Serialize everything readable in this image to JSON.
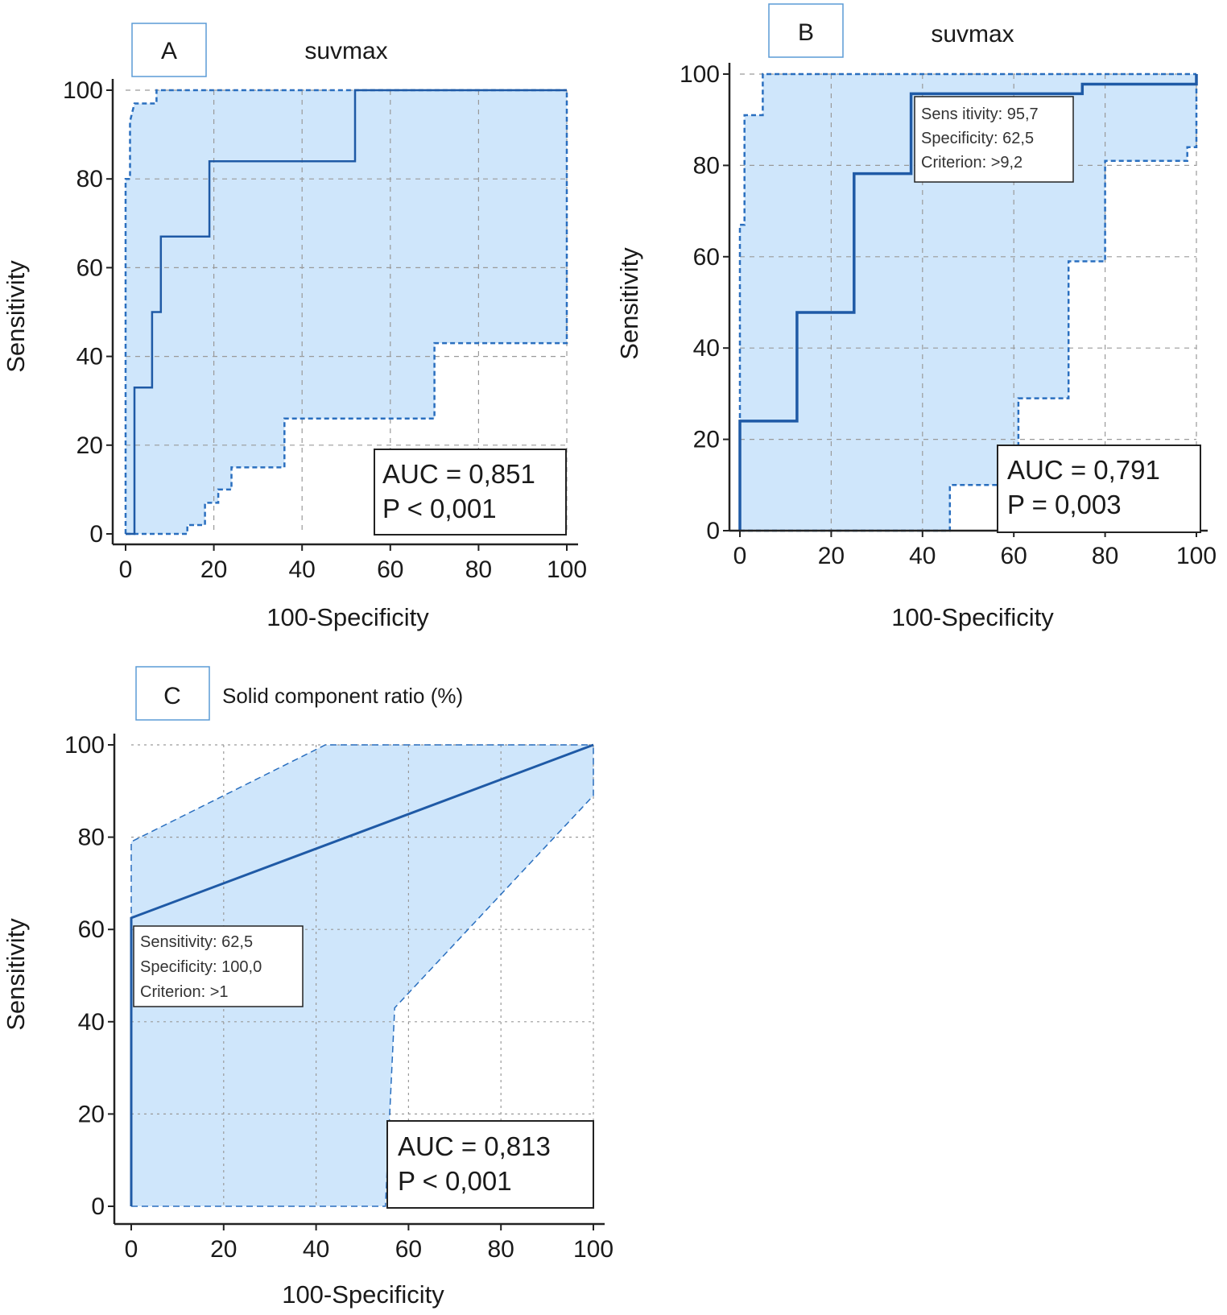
{
  "colors": {
    "curve": "#1f5aa6",
    "ci_fill": "#cfe6fb",
    "ci_line": "#2a6fbf",
    "grid": "#9a9a9a",
    "axis": "#222222",
    "letter_box": "#5b9bd5"
  },
  "chart_data": [
    {
      "type": "line",
      "panel_letter": "A",
      "title": "suvmax",
      "xlabel": "100-Specificity",
      "ylabel": "Sensitivity",
      "xlim": [
        0,
        100
      ],
      "ylim": [
        0,
        100
      ],
      "xticks": [
        0,
        20,
        40,
        60,
        80,
        100
      ],
      "yticks": [
        0,
        20,
        40,
        60,
        80,
        100
      ],
      "grid": true,
      "roc": {
        "x": [
          0,
          2,
          2,
          6,
          6,
          8,
          8,
          19,
          19,
          52,
          52,
          100
        ],
        "y": [
          0,
          0,
          33,
          33,
          50,
          50,
          67,
          67,
          84,
          84,
          100,
          100
        ]
      },
      "ci_upper": {
        "x": [
          0,
          0,
          1,
          1,
          2,
          7,
          7,
          100
        ],
        "y": [
          0,
          80,
          80,
          93,
          97,
          97,
          100,
          100
        ]
      },
      "ci_lower": {
        "x": [
          0,
          14,
          14,
          18,
          18,
          21,
          21,
          24,
          24,
          36,
          36,
          70,
          70,
          100,
          100
        ],
        "y": [
          0,
          0,
          2,
          2,
          7,
          7,
          10,
          10,
          15,
          15,
          26,
          26,
          43,
          43,
          100
        ]
      },
      "stats": {
        "auc": "AUC = 0,851",
        "p": "P < 0,001"
      },
      "stats_position": "bottom-right"
    },
    {
      "type": "line",
      "panel_letter": "B",
      "title": "suvmax",
      "xlabel": "100-Specificity",
      "ylabel": "Sensitivity",
      "xlim": [
        0,
        100
      ],
      "ylim": [
        0,
        100
      ],
      "xticks": [
        0,
        20,
        40,
        60,
        80,
        100
      ],
      "yticks": [
        0,
        20,
        40,
        60,
        80,
        100
      ],
      "grid": true,
      "roc": {
        "x": [
          0,
          0,
          12.5,
          12.5,
          25,
          25,
          37.5,
          37.5,
          75,
          75,
          100,
          100
        ],
        "y": [
          0,
          24,
          24,
          47.8,
          47.8,
          78.2,
          78.2,
          95.7,
          95.7,
          97.8,
          97.8,
          100
        ]
      },
      "ci_upper": {
        "x": [
          0,
          0,
          1,
          1,
          5,
          5,
          100
        ],
        "y": [
          0,
          67,
          67,
          91,
          91,
          100,
          100
        ]
      },
      "ci_lower": {
        "x": [
          0,
          46,
          46,
          61,
          61,
          72,
          72,
          80,
          80,
          98,
          98,
          100,
          100
        ],
        "y": [
          0,
          0,
          10,
          10,
          29,
          29,
          59,
          59,
          81,
          81,
          84,
          84,
          100
        ]
      },
      "criterion_box": {
        "lines": [
          "Sens itivity: 95,7",
          "Specificity: 62,5",
          "Criterion: >9,2"
        ],
        "anchor": [
          37.5,
          95.7
        ]
      },
      "stats": {
        "auc": "AUC = 0,791",
        "p": "P = 0,003"
      },
      "stats_position": "bottom-right"
    },
    {
      "type": "line",
      "panel_letter": "C",
      "title": "Solid component ratio (%)",
      "xlabel": "100-Specificity",
      "ylabel": "Sensitivity",
      "xlim": [
        0,
        100
      ],
      "ylim": [
        0,
        100
      ],
      "xticks": [
        0,
        20,
        40,
        60,
        80,
        100
      ],
      "yticks": [
        0,
        20,
        40,
        60,
        80,
        100
      ],
      "grid": true,
      "roc": {
        "x": [
          0,
          0,
          100
        ],
        "y": [
          0,
          62.5,
          100
        ]
      },
      "ci_upper": {
        "x": [
          0,
          0,
          42,
          100
        ],
        "y": [
          0,
          79,
          100,
          100
        ]
      },
      "ci_lower": {
        "x": [
          0,
          55,
          57,
          100,
          100
        ],
        "y": [
          0,
          0,
          43,
          89,
          100
        ]
      },
      "criterion_box": {
        "lines": [
          "Sensitivity: 62,5",
          "Specificity: 100,0",
          "Criterion: >1"
        ],
        "anchor": [
          0,
          62.5
        ]
      },
      "stats": {
        "auc": "AUC = 0,813",
        "p": "P < 0,001"
      },
      "stats_position": "bottom-right"
    }
  ]
}
